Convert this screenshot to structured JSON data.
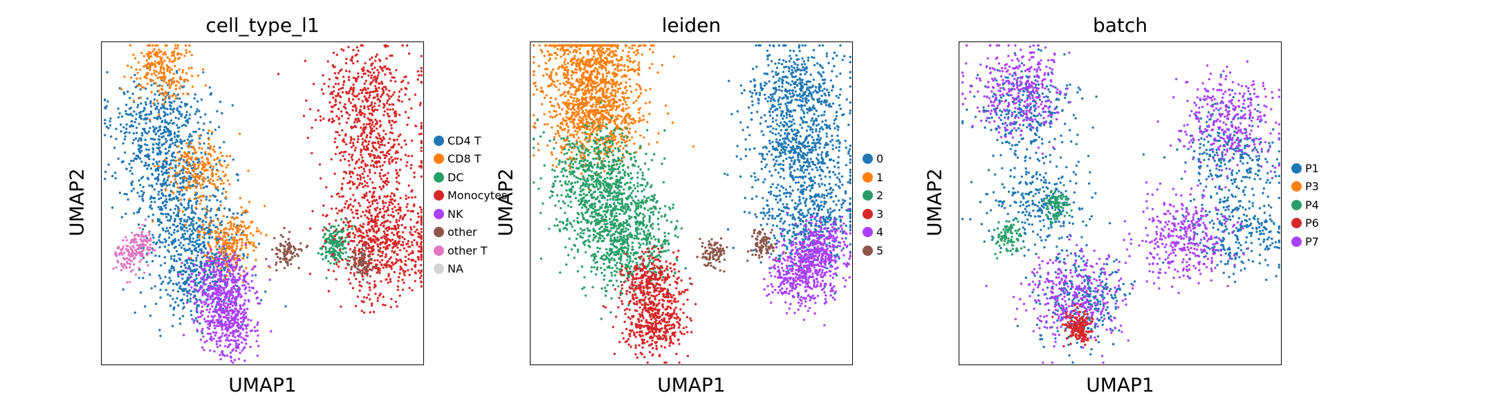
{
  "chart_data": [
    {
      "type": "scatter",
      "title": "cell_type_l1",
      "xlabel": "UMAP1",
      "ylabel": "UMAP2",
      "grid": false,
      "ticks": false,
      "legend_placement": "right",
      "categories": [
        "CD4 T",
        "CD8 T",
        "DC",
        "Monocytes",
        "NK",
        "other",
        "other T",
        "NA"
      ],
      "colors": [
        "#1f77b4",
        "#ff7f0e",
        "#279e68",
        "#d62728",
        "#aa40fc",
        "#8c564b",
        "#e377c2",
        "#d3d3d3"
      ],
      "clusters": [
        {
          "category": "CD4 T",
          "x": [
            0.18,
            0.22,
            0.28,
            0.3
          ],
          "y": [
            0.76,
            0.6,
            0.42,
            0.28
          ],
          "size": "large"
        },
        {
          "category": "CD8 T",
          "x": [
            0.19,
            0.3,
            0.4
          ],
          "y": [
            0.92,
            0.6,
            0.38
          ],
          "size": "medium"
        },
        {
          "category": "DC",
          "x": [
            0.73,
            0.71
          ],
          "y": [
            0.39,
            0.36
          ],
          "size": "small"
        },
        {
          "category": "Monocytes",
          "x": [
            0.82,
            0.84,
            0.85,
            0.88
          ],
          "y": [
            0.85,
            0.66,
            0.45,
            0.34
          ],
          "size": "large"
        },
        {
          "category": "NK",
          "x": [
            0.37,
            0.39
          ],
          "y": [
            0.25,
            0.13
          ],
          "size": "medium"
        },
        {
          "category": "other",
          "x": [
            0.57,
            0.81
          ],
          "y": [
            0.35,
            0.32
          ],
          "size": "small"
        },
        {
          "category": "other T",
          "x": [
            0.08,
            0.12
          ],
          "y": [
            0.33,
            0.38
          ],
          "size": "small"
        }
      ]
    },
    {
      "type": "scatter",
      "title": "leiden",
      "xlabel": "UMAP1",
      "ylabel": "UMAP2",
      "grid": false,
      "ticks": false,
      "legend_placement": "right",
      "categories": [
        "0",
        "1",
        "2",
        "3",
        "4",
        "5"
      ],
      "colors": [
        "#1f77b4",
        "#ff7f0e",
        "#279e68",
        "#d62728",
        "#aa40fc",
        "#8c564b"
      ],
      "clusters": [
        {
          "category": "0",
          "x": [
            0.82,
            0.84,
            0.86
          ],
          "y": [
            0.85,
            0.66,
            0.45
          ],
          "size": "large"
        },
        {
          "category": "1",
          "x": [
            0.19,
            0.2
          ],
          "y": [
            0.92,
            0.76
          ],
          "size": "large"
        },
        {
          "category": "2",
          "x": [
            0.2,
            0.25,
            0.3
          ],
          "y": [
            0.6,
            0.48,
            0.36
          ],
          "size": "large"
        },
        {
          "category": "3",
          "x": [
            0.37,
            0.39
          ],
          "y": [
            0.25,
            0.13
          ],
          "size": "medium"
        },
        {
          "category": "4",
          "x": [
            0.9,
            0.83
          ],
          "y": [
            0.36,
            0.28
          ],
          "size": "medium"
        },
        {
          "category": "5",
          "x": [
            0.72,
            0.57
          ],
          "y": [
            0.38,
            0.35
          ],
          "size": "small"
        }
      ]
    },
    {
      "type": "scatter",
      "title": "batch",
      "xlabel": "UMAP1",
      "ylabel": "UMAP2",
      "grid": false,
      "ticks": false,
      "legend_placement": "right",
      "categories": [
        "P1",
        "P3",
        "P4",
        "P6",
        "P7"
      ],
      "colors": [
        "#1f77b4",
        "#ff7f0e",
        "#279e68",
        "#d62728",
        "#aa40fc"
      ],
      "clusters": [
        {
          "category": "P1",
          "x": [
            0.2,
            0.25,
            0.38,
            0.84,
            0.86
          ],
          "y": [
            0.8,
            0.5,
            0.2,
            0.66,
            0.42
          ],
          "size": "large"
        },
        {
          "category": "P7",
          "x": [
            0.84,
            0.18,
            0.36,
            0.7
          ],
          "y": [
            0.75,
            0.85,
            0.22,
            0.4
          ],
          "size": "large"
        },
        {
          "category": "P4",
          "x": [
            0.15,
            0.3
          ],
          "y": [
            0.4,
            0.5
          ],
          "size": "small"
        },
        {
          "category": "P6",
          "x": [
            0.37
          ],
          "y": [
            0.12
          ],
          "size": "small"
        }
      ]
    }
  ]
}
